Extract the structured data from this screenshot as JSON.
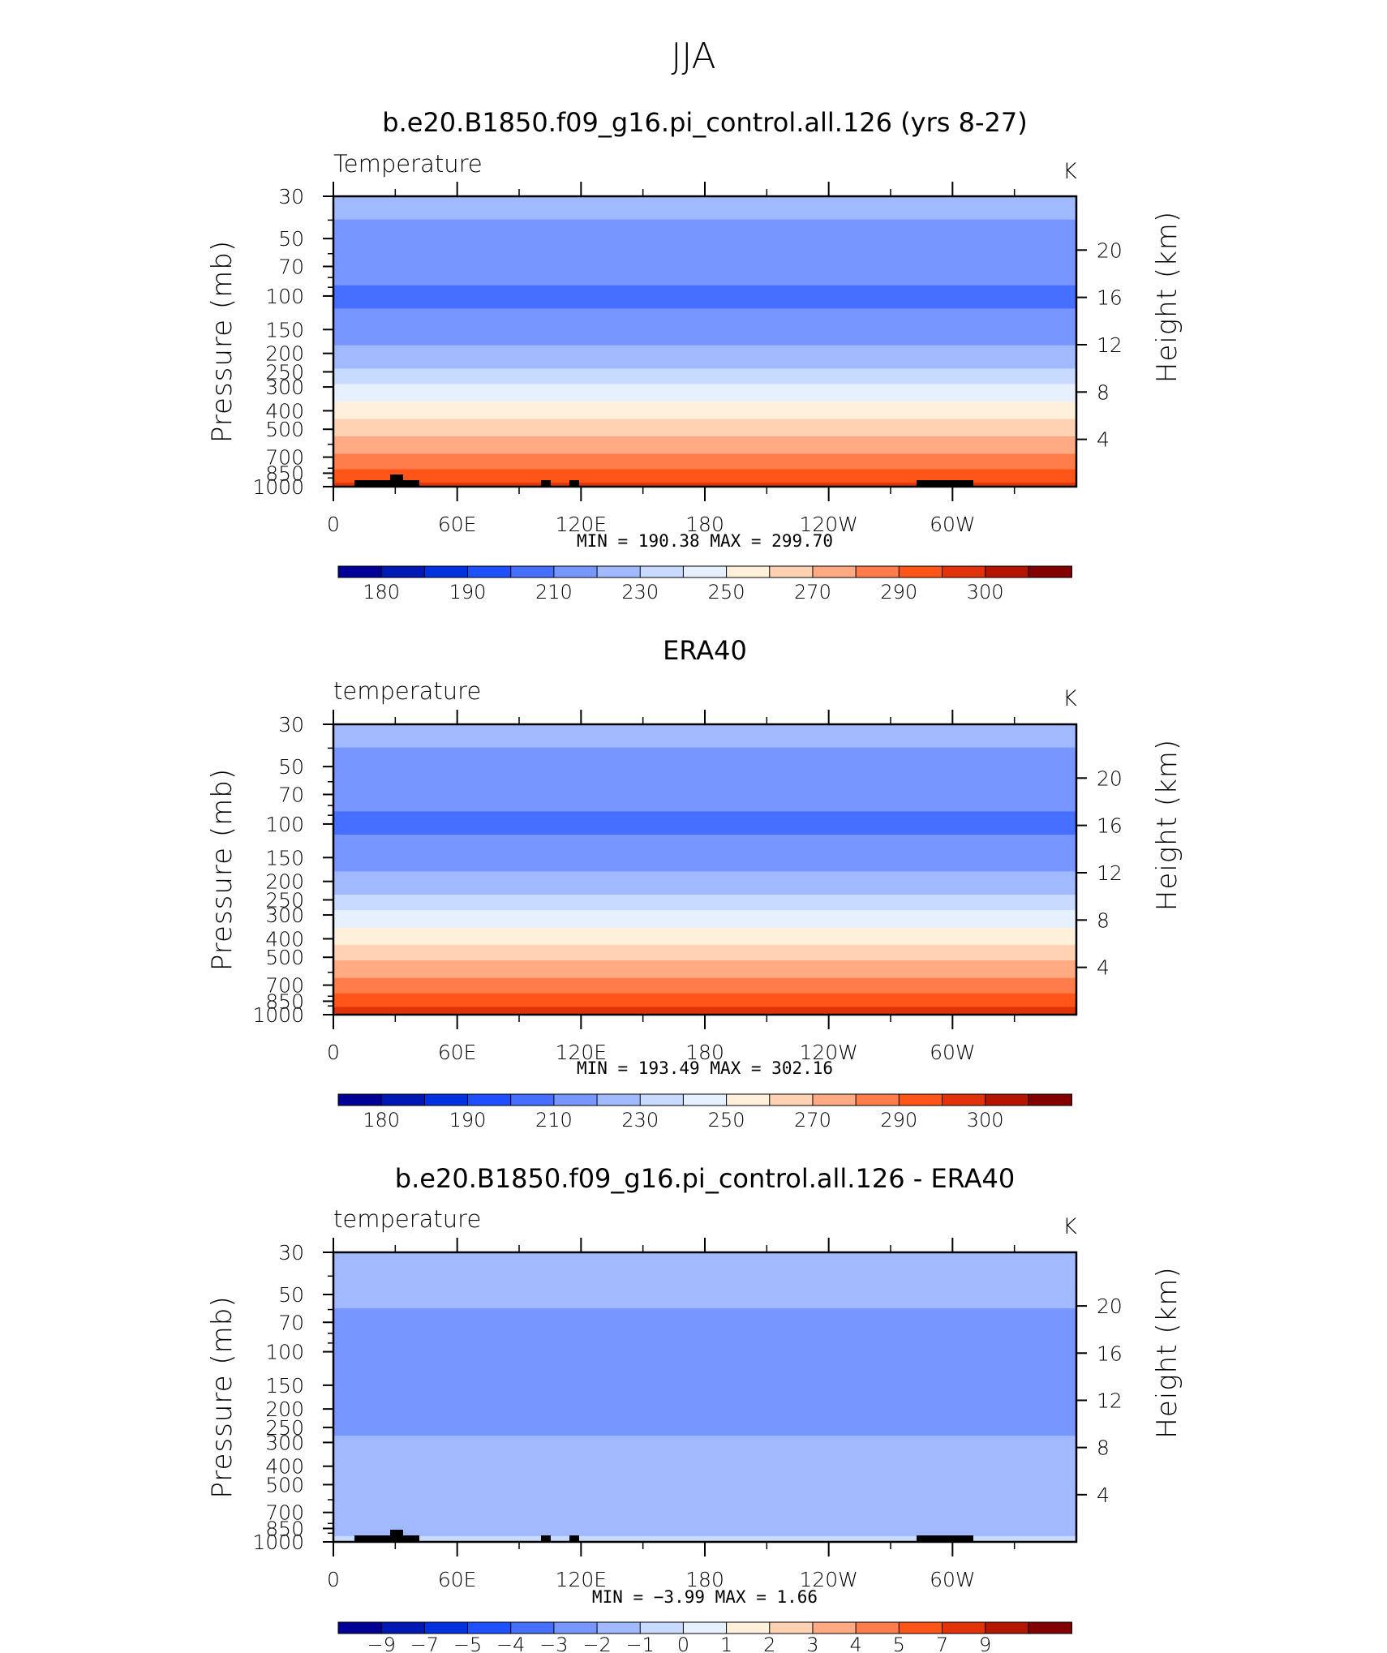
{
  "page_title": "JJA",
  "chart_data": [
    {
      "type": "heatmap",
      "title": "b.e20.B1850.f09_g16.pi_control.all.126 (yrs 8-27)",
      "left_label": "Temperature",
      "right_label": "K",
      "ylabel": "Pressure (mb)",
      "y2label": "Height (km)",
      "y_scale": "log",
      "ylim": [
        1000,
        30
      ],
      "y_ticks": [
        30,
        50,
        70,
        100,
        150,
        200,
        250,
        300,
        400,
        500,
        700,
        850,
        1000
      ],
      "y2_ticks": [
        4,
        8,
        12,
        16,
        20
      ],
      "x_ticks": [
        "0",
        "60E",
        "120E",
        "180",
        "120W",
        "60W"
      ],
      "xlim": [
        0,
        360
      ],
      "stats": "MIN = 190.38   MAX = 299.70",
      "colorbar_labels": [
        "180",
        "190",
        "210",
        "230",
        "250",
        "270",
        "290",
        "300"
      ],
      "colorbar_levels": [
        175,
        180,
        185,
        190,
        200,
        210,
        220,
        230,
        240,
        250,
        260,
        270,
        280,
        290,
        295,
        300
      ],
      "profile": [
        [
          30,
          214
        ],
        [
          50,
          207
        ],
        [
          70,
          204
        ],
        [
          100,
          198
        ],
        [
          150,
          203
        ],
        [
          200,
          213
        ],
        [
          250,
          222
        ],
        [
          300,
          232
        ],
        [
          400,
          245
        ],
        [
          500,
          256
        ],
        [
          700,
          272
        ],
        [
          850,
          283
        ],
        [
          1000,
          293
        ]
      ],
      "min": 190.38,
      "max": 299.7
    },
    {
      "type": "heatmap",
      "title": "ERA40",
      "left_label": "temperature",
      "right_label": "K",
      "ylabel": "Pressure (mb)",
      "y2label": "Height (km)",
      "y_scale": "log",
      "ylim": [
        1000,
        30
      ],
      "y_ticks": [
        30,
        50,
        70,
        100,
        150,
        200,
        250,
        300,
        400,
        500,
        700,
        850,
        1000
      ],
      "y2_ticks": [
        4,
        8,
        12,
        16,
        20
      ],
      "x_ticks": [
        "0",
        "60E",
        "120E",
        "180",
        "120W",
        "60W"
      ],
      "xlim": [
        0,
        360
      ],
      "stats": "MIN = 193.49   MAX = 302.16",
      "colorbar_labels": [
        "180",
        "190",
        "210",
        "230",
        "250",
        "270",
        "290",
        "300"
      ],
      "colorbar_levels": [
        175,
        180,
        185,
        190,
        200,
        210,
        220,
        230,
        240,
        250,
        260,
        270,
        280,
        290,
        295,
        300
      ],
      "profile": [
        [
          30,
          214
        ],
        [
          50,
          207
        ],
        [
          70,
          203
        ],
        [
          100,
          198
        ],
        [
          150,
          204
        ],
        [
          200,
          214
        ],
        [
          250,
          223
        ],
        [
          300,
          233
        ],
        [
          400,
          246
        ],
        [
          500,
          258
        ],
        [
          700,
          274
        ],
        [
          850,
          286
        ],
        [
          1000,
          295
        ]
      ],
      "min": 193.49,
      "max": 302.16
    },
    {
      "type": "heatmap",
      "title": "b.e20.B1850.f09_g16.pi_control.all.126 - ERA40",
      "left_label": "temperature",
      "right_label": "K",
      "ylabel": "Pressure (mb)",
      "y2label": "Height (km)",
      "y_scale": "log",
      "ylim": [
        1000,
        30
      ],
      "y_ticks": [
        30,
        50,
        70,
        100,
        150,
        200,
        250,
        300,
        400,
        500,
        700,
        850,
        1000
      ],
      "y2_ticks": [
        4,
        8,
        12,
        16,
        20
      ],
      "x_ticks": [
        "0",
        "60E",
        "120E",
        "180",
        "120W",
        "60W"
      ],
      "xlim": [
        0,
        360
      ],
      "stats": "MIN =   −3.99   MAX =     1.66",
      "colorbar_labels": [
        "−9",
        "−7",
        "−5",
        "−4",
        "−3",
        "−2",
        "−1",
        "0",
        "1",
        "2",
        "3",
        "4",
        "5",
        "7",
        "9"
      ],
      "colorbar_levels": [
        -9,
        -7,
        -5,
        -4,
        -3,
        -2,
        -1,
        0,
        1,
        2,
        3,
        4,
        5,
        7,
        9
      ],
      "profile": [
        [
          30,
          -1.5
        ],
        [
          50,
          -1.5
        ],
        [
          70,
          -2.5
        ],
        [
          100,
          -2.5
        ],
        [
          150,
          -2.3
        ],
        [
          200,
          -2.7
        ],
        [
          250,
          -2.3
        ],
        [
          300,
          -1.8
        ],
        [
          400,
          -1.5
        ],
        [
          500,
          -1.2
        ],
        [
          700,
          -1.5
        ],
        [
          850,
          -1.5
        ],
        [
          1000,
          -0.5
        ]
      ],
      "min": -3.99,
      "max": 1.66
    }
  ],
  "colors": {
    "temperature_scale": [
      "#000096",
      "#0019b4",
      "#0032e0",
      "#1e50ff",
      "#466eff",
      "#7896ff",
      "#a0b9ff",
      "#c8daff",
      "#e6f0ff",
      "#fff0dc",
      "#ffd2b4",
      "#ffaa82",
      "#ff7d4b",
      "#ff5519",
      "#e1320a",
      "#b41400",
      "#820000"
    ],
    "topography": "#000000"
  }
}
